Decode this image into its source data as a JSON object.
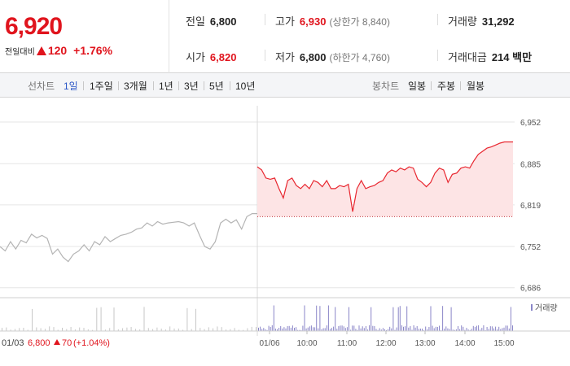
{
  "quote": {
    "current_price": "6,920",
    "change_label": "전일대비",
    "change_value": "120",
    "change_pct": "+1.76%",
    "prev_close_label": "전일",
    "prev_close": "6,800",
    "open_label": "시가",
    "open": "6,820",
    "high_label": "고가",
    "high": "6,930",
    "upper_limit": "(상한가 8,840)",
    "low_label": "저가",
    "low": "6,800",
    "lower_limit": "(하한가 4,760)",
    "volume_label": "거래량",
    "volume": "31,292",
    "turnover_label": "거래대금",
    "turnover": "214 백만"
  },
  "period_bar": {
    "line_chart_label": "선차트",
    "line_periods": [
      "1일",
      "1주일",
      "3개월",
      "1년",
      "3년",
      "5년",
      "10년"
    ],
    "active_period": "1일",
    "candle_chart_label": "봉차트",
    "candle_periods": [
      "일봉",
      "주봉",
      "월봉"
    ]
  },
  "colors": {
    "up": "#e0141d",
    "active_tab": "#2a56c6",
    "today_line": "#e8262f",
    "today_fill": "#fde4e5",
    "prev_line": "#b4b4b4",
    "volume_today": "#8a86c8",
    "volume_prev": "#c7c7c7"
  },
  "chart_data": {
    "type": "line",
    "ylim": [
      6670,
      6965
    ],
    "yticks": [
      "6,952",
      "6,885",
      "6,819",
      "6,752",
      "6,686"
    ],
    "ytick_values": [
      6952,
      6885,
      6819,
      6752,
      6686
    ],
    "xticks": [
      "01/06",
      "10:00",
      "11:00",
      "12:00",
      "13:00",
      "14:00",
      "15:00"
    ],
    "reference_price": 6800,
    "legend": "거래량",
    "footer": {
      "prev_date": "01/03",
      "prev_close": "6,800",
      "prev_change": "70",
      "prev_change_pct": "(+1.04%)"
    },
    "series": [
      {
        "session": "01/03",
        "values": [
          6752,
          6745,
          6760,
          6748,
          6762,
          6758,
          6772,
          6766,
          6770,
          6765,
          6740,
          6748,
          6735,
          6728,
          6740,
          6745,
          6755,
          6745,
          6760,
          6755,
          6768,
          6760,
          6765,
          6770,
          6772,
          6775,
          6780,
          6782,
          6790,
          6785,
          6792,
          6788,
          6790,
          6791,
          6792,
          6790,
          6785,
          6790,
          6770,
          6752,
          6748,
          6760,
          6790,
          6796,
          6790,
          6795,
          6780,
          6800,
          6805,
          6805
        ]
      },
      {
        "session": "01/06",
        "values": [
          6880,
          6875,
          6862,
          6860,
          6862,
          6845,
          6830,
          6858,
          6862,
          6850,
          6845,
          6852,
          6845,
          6858,
          6855,
          6848,
          6858,
          6845,
          6845,
          6850,
          6848,
          6852,
          6808,
          6845,
          6858,
          6845,
          6848,
          6850,
          6855,
          6858,
          6870,
          6875,
          6872,
          6878,
          6875,
          6880,
          6878,
          6860,
          6855,
          6848,
          6855,
          6870,
          6878,
          6875,
          6855,
          6868,
          6870,
          6878,
          6880,
          6878,
          6890,
          6900,
          6905,
          6910,
          6912,
          6915,
          6918,
          6920,
          6920,
          6920
        ]
      }
    ]
  }
}
